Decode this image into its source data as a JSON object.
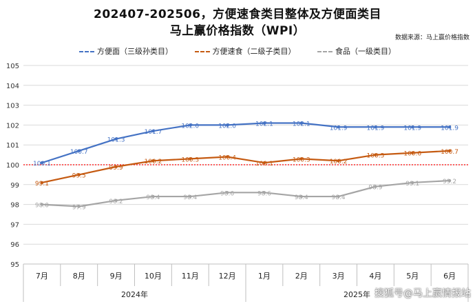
{
  "chart_data": {
    "type": "line",
    "title_line1": "202407-202506，方便速食类目整体及方便面类目",
    "title_line2": "马上赢价格指数（WPI）",
    "source": "数据来源：马上赢价格指数",
    "categories": [
      "7月",
      "8月",
      "9月",
      "10月",
      "11月",
      "12月",
      "1月",
      "2月",
      "3月",
      "4月",
      "5月",
      "6月"
    ],
    "year_groups": [
      {
        "label": "2024年",
        "start": 0,
        "end": 5
      },
      {
        "label": "2025年",
        "start": 6,
        "end": 11
      }
    ],
    "series": [
      {
        "name": "方便面（三级孙类目）",
        "color": "#4472C4",
        "values": [
          100.1,
          100.7,
          101.3,
          101.7,
          102.0,
          102.0,
          102.1,
          102.1,
          101.9,
          101.9,
          101.9,
          101.9
        ],
        "labels": [
          "100.1",
          "100.7",
          "101.3",
          "101.7",
          "102.0",
          "102.0",
          "102.1",
          "102.1",
          "101.9",
          "101.9",
          "101.9",
          "101.9"
        ]
      },
      {
        "name": "方便速食（二级子类目）",
        "color": "#C55A11",
        "values": [
          99.1,
          99.5,
          99.9,
          100.2,
          100.3,
          100.4,
          100.1,
          100.3,
          100.2,
          100.5,
          100.6,
          100.7
        ],
        "labels": [
          "99.1",
          "99.5",
          "99.9",
          "100.2",
          "100.3",
          "100.4",
          "100.1",
          "100.3",
          "100.2",
          "100.5",
          "100.6",
          "100.7"
        ]
      },
      {
        "name": "食品（一级类目）",
        "color": "#A5A5A5",
        "values": [
          98.0,
          97.9,
          98.2,
          98.4,
          98.4,
          98.6,
          98.6,
          98.4,
          98.4,
          98.9,
          99.1,
          99.2
        ],
        "labels": [
          "98.0",
          "97.9",
          "98.2",
          "98.4",
          "98.4",
          "98.6",
          "98.6",
          "98.4",
          "98.4",
          "98.9",
          "99.1",
          "99.2"
        ]
      }
    ],
    "ylim": [
      95,
      105
    ],
    "yticks": [
      95,
      96,
      97,
      98,
      99,
      100,
      101,
      102,
      103,
      104,
      105
    ],
    "reference_line": {
      "value": 100,
      "color": "#FF0000",
      "style": "dotted"
    },
    "grid": true,
    "legend_position": "top"
  },
  "watermark": "搜狐号@马上赢情报站"
}
